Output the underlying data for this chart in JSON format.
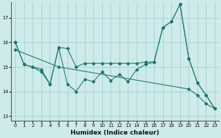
{
  "title": "",
  "xlabel": "Humidex (Indice chaleur)",
  "background_color": "#ceeaea",
  "grid_color": "#a8d4d4",
  "line_color": "#1a7a6a",
  "xlim": [
    -0.5,
    23.5
  ],
  "ylim": [
    12.8,
    17.65
  ],
  "yticks": [
    13,
    14,
    15,
    16,
    17
  ],
  "line1_x": [
    0,
    1,
    2,
    3,
    4,
    5,
    6,
    7,
    8,
    9,
    10,
    11,
    12,
    13,
    14,
    15,
    16,
    17,
    18,
    19,
    20,
    21,
    22,
    23
  ],
  "line1_y": [
    16.0,
    15.1,
    15.0,
    14.9,
    14.3,
    15.8,
    15.75,
    15.0,
    15.15,
    15.15,
    15.15,
    15.15,
    15.15,
    15.15,
    15.15,
    15.2,
    15.2,
    16.6,
    16.85,
    17.55,
    15.35,
    14.35,
    13.85,
    13.3
  ],
  "line2_x": [
    0,
    1,
    2,
    3,
    4,
    5,
    6,
    7,
    8,
    9,
    10,
    11,
    12,
    13,
    14,
    15,
    16,
    17,
    18,
    19,
    20,
    21,
    22,
    23
  ],
  "line2_y": [
    16.0,
    15.1,
    15.0,
    14.8,
    14.3,
    15.8,
    14.3,
    14.0,
    14.5,
    14.4,
    14.8,
    14.45,
    14.7,
    14.4,
    14.9,
    15.1,
    15.2,
    16.6,
    16.85,
    17.55,
    15.35,
    14.35,
    13.85,
    13.3
  ],
  "line3_x": [
    0,
    5,
    20,
    21,
    22,
    23
  ],
  "line3_y": [
    15.7,
    15.0,
    14.1,
    13.85,
    13.5,
    13.3
  ],
  "xtick_labels": [
    "0",
    "1",
    "2",
    "3",
    "4",
    "5",
    "6",
    "7",
    "8",
    "9",
    "10",
    "11",
    "12",
    "13",
    "14",
    "15",
    "16",
    "17",
    "18",
    "19",
    "20",
    "21",
    "22",
    "23"
  ]
}
